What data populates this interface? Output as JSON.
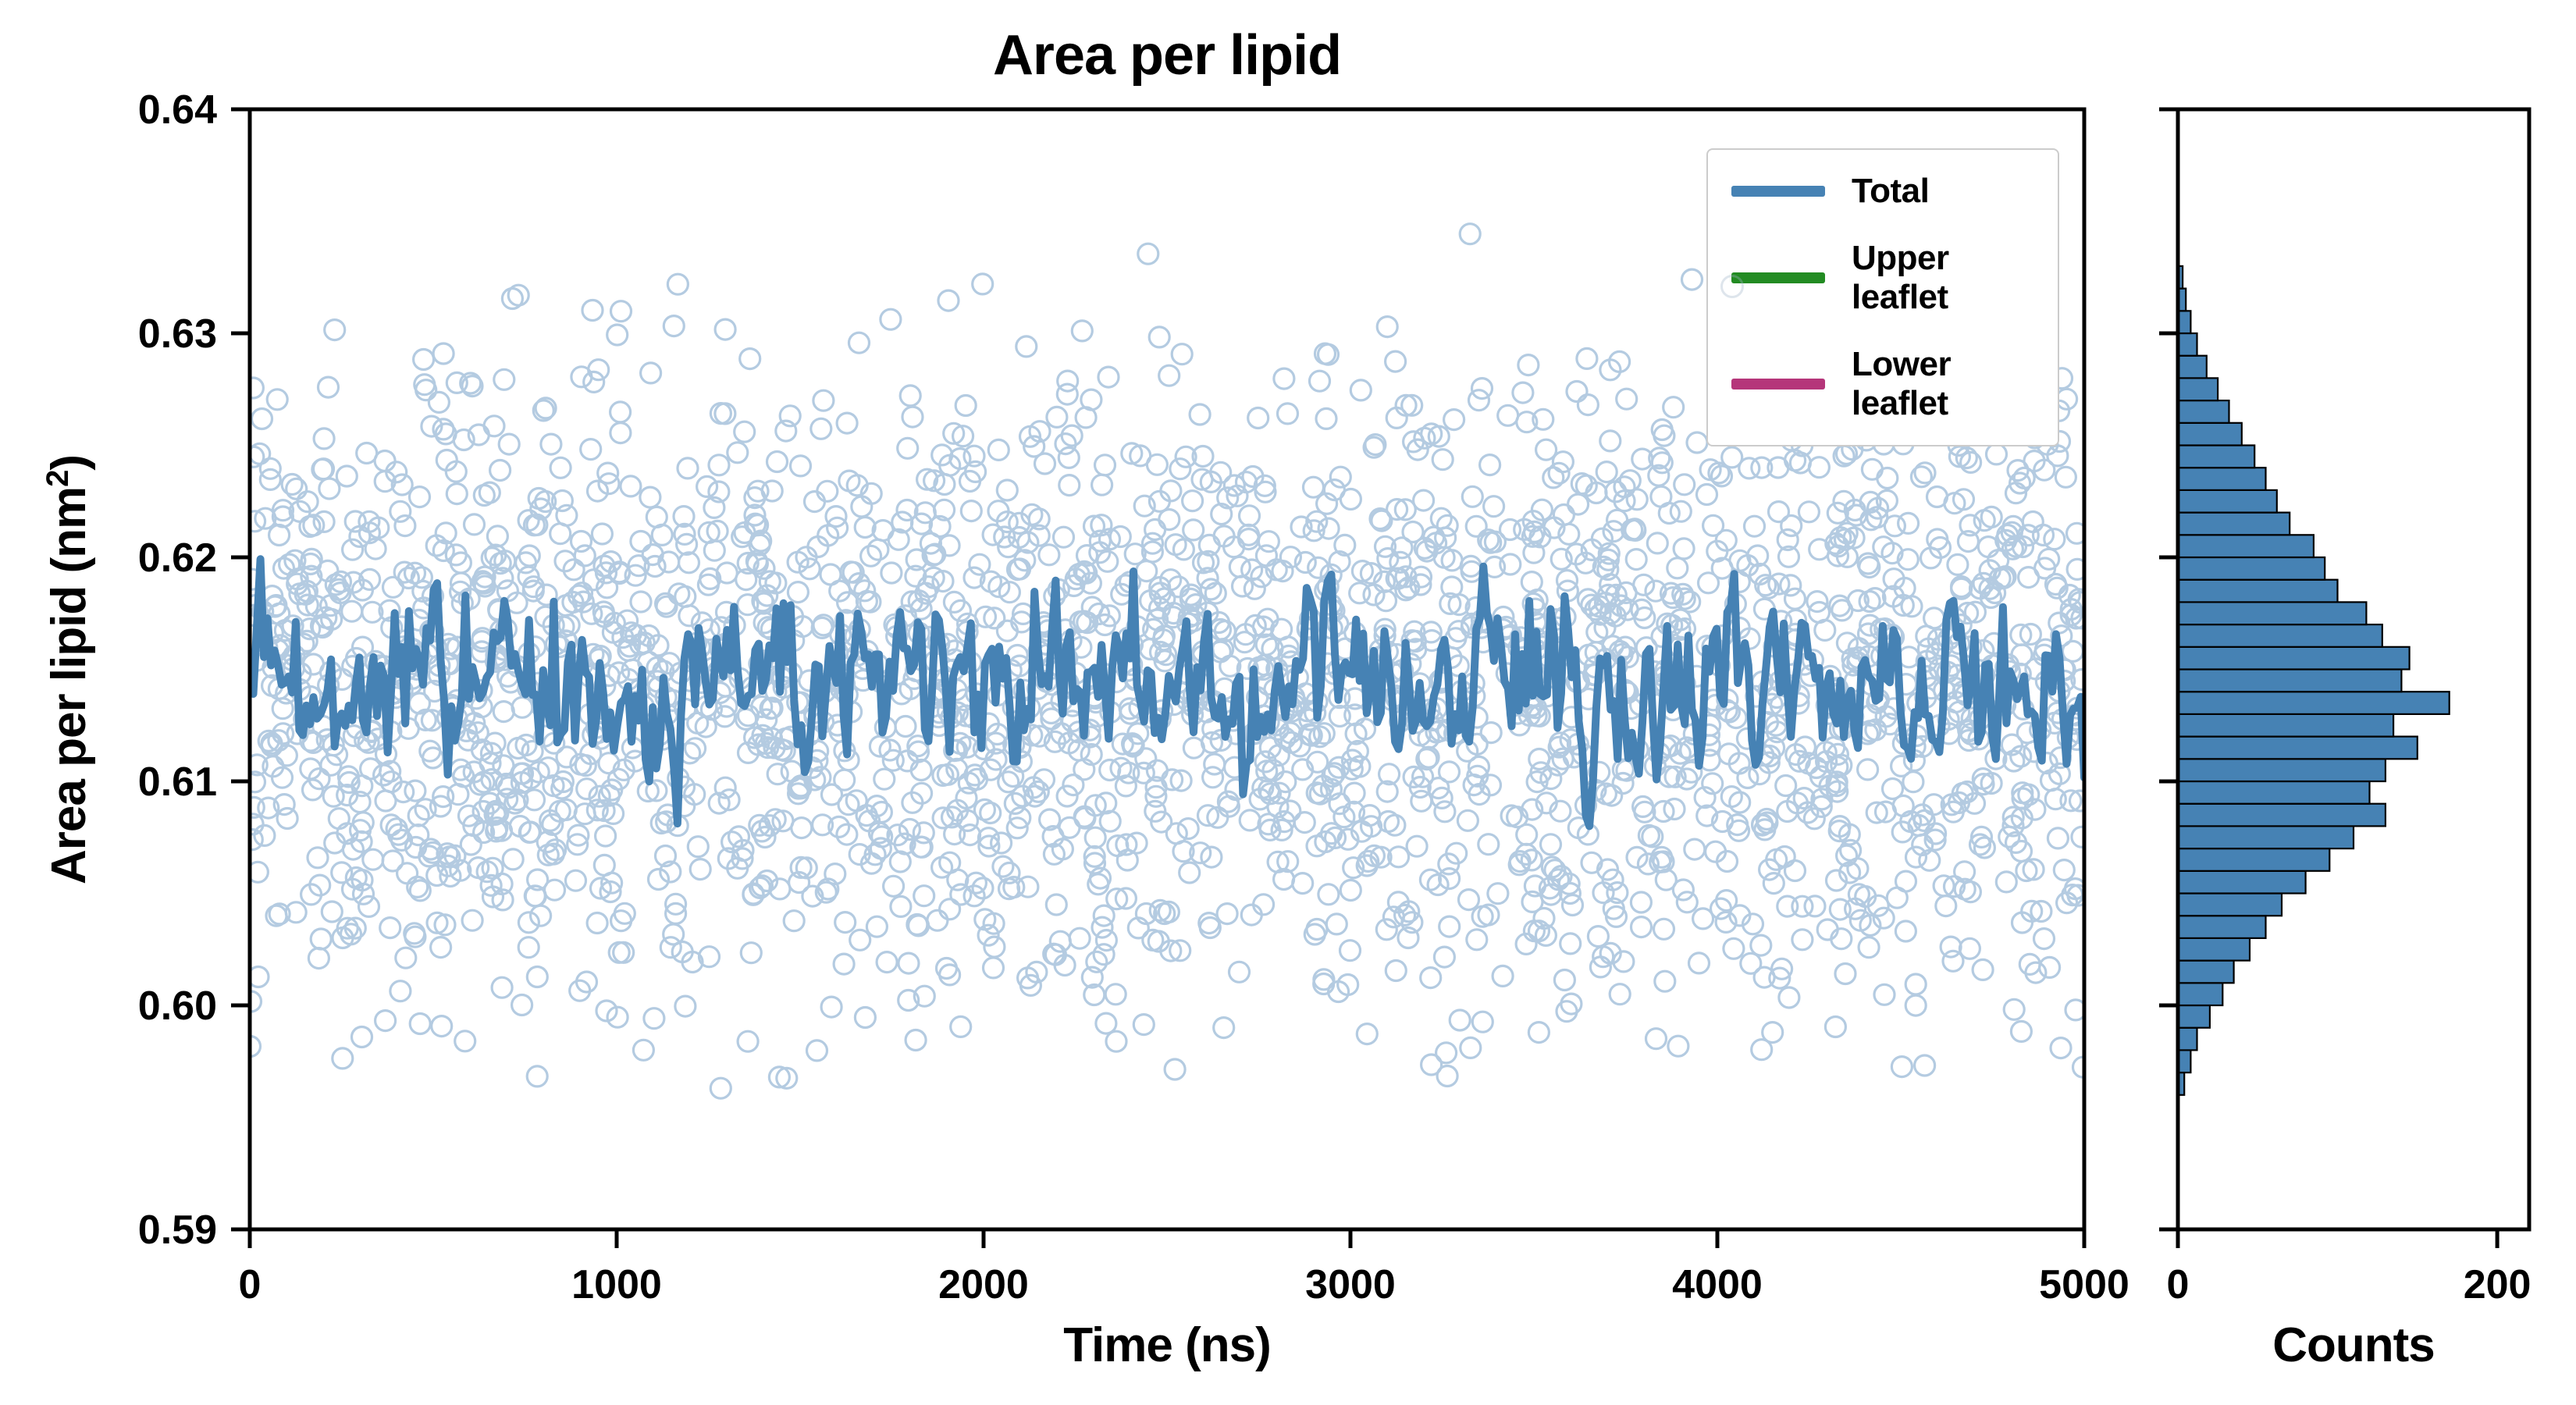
{
  "title": "Area per lipid",
  "axes": {
    "main": {
      "xlabel": "Time (ns)",
      "ylabel_text": "Area per lipid (nm",
      "ylabel_sup": "2",
      "ylabel_close": ")",
      "xticks": [
        "0",
        "1000",
        "2000",
        "3000",
        "4000",
        "5000"
      ],
      "yticks": [
        "0.59",
        "0.60",
        "0.61",
        "0.62",
        "0.63",
        "0.64"
      ]
    },
    "hist": {
      "xlabel": "Counts",
      "xticks": [
        "0",
        "200"
      ]
    }
  },
  "legend": {
    "position": "upper right",
    "entries": [
      {
        "label": "Total",
        "color": "#4682b4"
      },
      {
        "label": "Upper leaflet",
        "color": "#228b22"
      },
      {
        "label": "Lower leaflet",
        "color": "#b5367a"
      }
    ]
  },
  "chart_data": [
    {
      "type": "line",
      "title": "Area per lipid",
      "xlabel": "Time (ns)",
      "ylabel": "Area per lipid (nm²)",
      "xlim": [
        0,
        5000
      ],
      "ylim": [
        0.59,
        0.64
      ],
      "grid": false,
      "legend_position": "upper right",
      "series": [
        {
          "name": "Total",
          "color": "#4682b4",
          "scatter_color": "#a7c3dc",
          "mean": 0.6142,
          "line_noise": 0.0019,
          "ar": 0.45,
          "line_clip": 0.0062,
          "scatter_std": 0.0072,
          "scatter_range": [
            0.596,
            0.6345
          ],
          "n_scatter": 2500,
          "n_line": 520,
          "scatter_seed": 11,
          "line_seed": 99
        },
        {
          "name": "Upper leaflet",
          "color": "#228b22"
        },
        {
          "name": "Lower leaflet",
          "color": "#b5367a"
        }
      ]
    },
    {
      "type": "bar",
      "orientation": "horizontal",
      "xlabel": "Counts",
      "xlim": [
        0,
        220
      ],
      "xticks_values": [
        0,
        200
      ],
      "color": "#4682b4",
      "edge_color": "#000000",
      "bin_start": 0.596,
      "bin_width": 0.001,
      "counts": [
        4,
        8,
        12,
        20,
        28,
        35,
        45,
        55,
        65,
        80,
        95,
        110,
        130,
        120,
        130,
        150,
        135,
        170,
        140,
        145,
        128,
        118,
        100,
        92,
        85,
        70,
        62,
        55,
        48,
        40,
        32,
        25,
        18,
        12,
        8,
        5,
        3
      ]
    }
  ]
}
